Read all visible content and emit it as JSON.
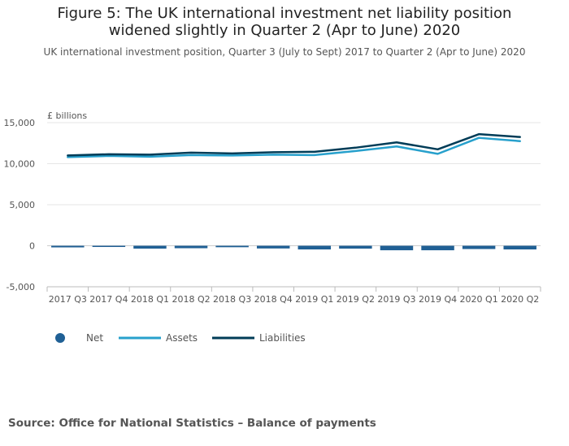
{
  "title": "Figure 5: The UK international investment net liability position widened slightly in Quarter 2 (Apr to June) 2020",
  "subtitle": "UK international investment position, Quarter 3 (July to Sept) 2017 to Quarter 2 (Apr to June) 2020",
  "source": "Source: Office for National Statistics – Balance of payments",
  "chart_data": {
    "type": "line",
    "title": "Figure 5: The UK international investment net liability position widened slightly in Quarter 2 (Apr to June) 2020",
    "ylabel": "£ billions",
    "xlabel": "",
    "ylim": [
      -5000,
      15000
    ],
    "yticks": [
      15000,
      10000,
      5000,
      0,
      -5000
    ],
    "ytick_labels": [
      "15,000",
      "10,000",
      "5,000",
      "0",
      "-5,000"
    ],
    "categories": [
      "2017 Q3",
      "2017 Q4",
      "2018 Q1",
      "2018 Q2",
      "2018 Q3",
      "2018 Q4",
      "2019 Q1",
      "2019 Q2",
      "2019 Q3",
      "2019 Q4",
      "2020 Q1",
      "2020 Q2"
    ],
    "legend_position": "bottom-left",
    "series": [
      {
        "name": "Net",
        "kind": "bar",
        "color": "#206095",
        "values": [
          -200,
          -150,
          -350,
          -300,
          -180,
          -330,
          -450,
          -350,
          -550,
          -550,
          -400,
          -450
        ]
      },
      {
        "name": "Assets",
        "kind": "line",
        "color": "#27a0cc",
        "values": [
          10800,
          10950,
          10850,
          11050,
          11000,
          11100,
          11050,
          11550,
          12100,
          11200,
          13150,
          12750
        ]
      },
      {
        "name": "Liabilities",
        "kind": "line",
        "color": "#003c57",
        "values": [
          11000,
          11150,
          11100,
          11350,
          11250,
          11400,
          11450,
          11950,
          12600,
          11750,
          13600,
          13250
        ]
      }
    ]
  }
}
